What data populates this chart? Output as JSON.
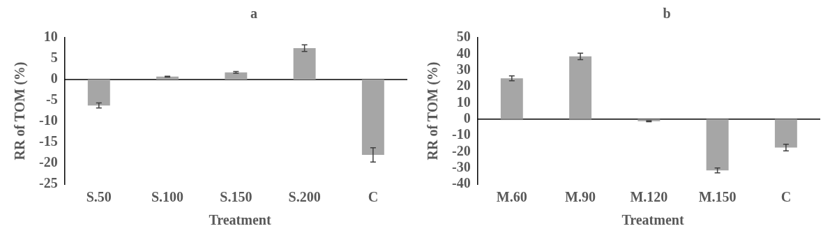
{
  "chart_data": [
    {
      "type": "bar",
      "title": "a",
      "xlabel": "Treatment",
      "ylabel": "RR of TOM (%)",
      "categories": [
        "S.50",
        "S.100",
        "S.150",
        "S.200",
        "C"
      ],
      "series": [
        {
          "color": "#a6a6a6",
          "values": [
            -6.2,
            0.7,
            1.7,
            7.5,
            -18
          ],
          "errors": [
            0.6,
            0.1,
            0.2,
            0.8,
            1.7
          ]
        }
      ],
      "ref_lines": [
        {
          "axis": "y",
          "value": 0,
          "color": "#000000"
        }
      ],
      "ylim": [
        -25,
        10
      ],
      "yticks": [
        -25,
        -20,
        -15,
        -10,
        -5,
        0,
        5,
        10
      ],
      "grid": false,
      "legend": false
    },
    {
      "type": "bar",
      "title": "b",
      "xlabel": "Treatment",
      "ylabel": "RR of TOM (%)",
      "categories": [
        "M.60",
        "M.90",
        "M.120",
        "M.150",
        "C"
      ],
      "series": [
        {
          "color": "#a6a6a6",
          "values": [
            25,
            38.5,
            -1.3,
            -31.5,
            -17.5
          ],
          "errors": [
            1.5,
            2,
            0.3,
            1.5,
            2
          ]
        }
      ],
      "ref_lines": [
        {
          "axis": "y",
          "value": 0,
          "color": "#000000"
        }
      ],
      "ylim": [
        -40,
        50
      ],
      "yticks": [
        -40,
        -30,
        -20,
        -10,
        0,
        10,
        20,
        30,
        40,
        50
      ],
      "grid": false,
      "legend": false
    }
  ]
}
